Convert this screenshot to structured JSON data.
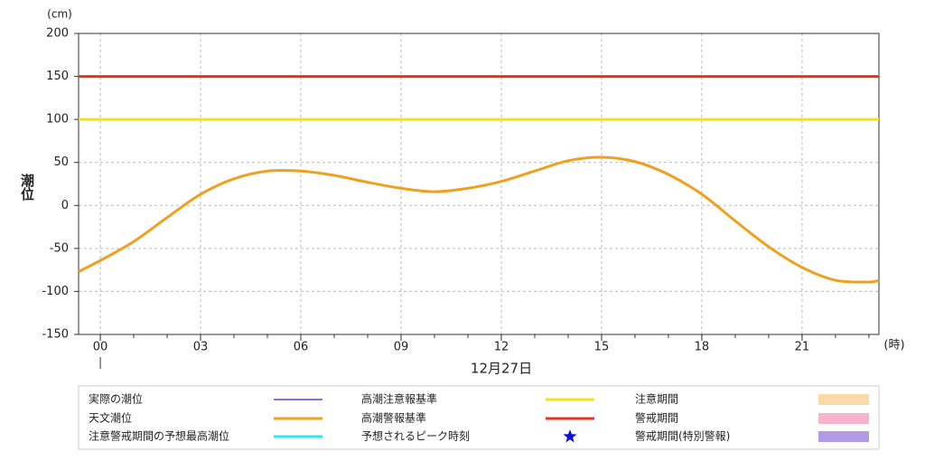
{
  "chart_data": {
    "type": "line",
    "y_unit": "(cm)",
    "y_label": "潮位",
    "x_unit": "(時)",
    "date_label": "12月27日",
    "xlim": [
      -0.65,
      23.3
    ],
    "xticks": [
      {
        "value": 0,
        "label": "00"
      },
      {
        "value": 3,
        "label": "03"
      },
      {
        "value": 6,
        "label": "06"
      },
      {
        "value": 9,
        "label": "09"
      },
      {
        "value": 12,
        "label": "12"
      },
      {
        "value": 15,
        "label": "15"
      },
      {
        "value": 18,
        "label": "18"
      },
      {
        "value": 21,
        "label": "21"
      }
    ],
    "ylim": [
      -150,
      200
    ],
    "yticks": [
      200,
      150,
      100,
      50,
      0,
      -50,
      -100,
      -150
    ],
    "grid": true,
    "series": [
      {
        "name": "天文潮位",
        "color": "#f0a020",
        "x": [
          -0.65,
          0,
          1,
          2,
          3,
          4,
          5,
          6,
          7,
          8,
          9,
          10,
          11,
          12,
          13,
          14,
          15,
          16,
          17,
          18,
          19,
          20,
          21,
          22,
          23,
          23.3
        ],
        "values": [
          -77,
          -64,
          -42,
          -14,
          13,
          31,
          40,
          40,
          35,
          27,
          20,
          16,
          20,
          28,
          40,
          52,
          56,
          51,
          36,
          13,
          -18,
          -48,
          -72,
          -87,
          -89,
          -87
        ]
      }
    ],
    "thresholds": [
      {
        "name": "高潮注意報基準",
        "color": "#f5e11a",
        "value": 100
      },
      {
        "name": "高潮警報基準",
        "color": "#e8321e",
        "value": 150
      }
    ],
    "other_legend": [
      {
        "name": "実際の潮位",
        "color": "#6a3fc8"
      },
      {
        "name": "注意警戒期間の予想最高潮位",
        "color": "#2ee6f0"
      },
      {
        "name": "予想されるピーク時刻",
        "color": "#1010d0"
      },
      {
        "name": "注意期間",
        "color": "#fbd9a8"
      },
      {
        "name": "警戒期間",
        "color": "#f8b3cc"
      },
      {
        "name": "警戒期間(特別警報)",
        "color": "#b39ae6"
      }
    ]
  }
}
